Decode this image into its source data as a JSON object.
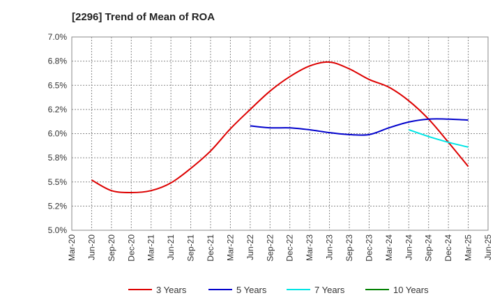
{
  "chart_data": {
    "type": "line",
    "title": "[2296]  Trend of Mean of ROA",
    "xlabel": "",
    "ylabel": "",
    "x_ticks": [
      "Mar-20",
      "Jun-20",
      "Sep-20",
      "Dec-20",
      "Mar-21",
      "Jun-21",
      "Sep-21",
      "Dec-21",
      "Mar-22",
      "Jun-22",
      "Sep-22",
      "Dec-22",
      "Mar-23",
      "Jun-23",
      "Sep-23",
      "Dec-23",
      "Mar-24",
      "Jun-24",
      "Sep-24",
      "Dec-24",
      "Mar-25",
      "Jun-25"
    ],
    "y_ticks": [
      "5.0%",
      "5.2%",
      "5.5%",
      "5.8%",
      "6.0%",
      "6.2%",
      "6.5%",
      "6.8%",
      "7.0%"
    ],
    "ylim": [
      5.0,
      7.0
    ],
    "grid": true,
    "legend_position": "bottom",
    "series": [
      {
        "name": "3 Years",
        "color": "#dd0000",
        "x": [
          "Jun-20",
          "Sep-20",
          "Dec-20",
          "Mar-21",
          "Jun-21",
          "Sep-21",
          "Dec-21",
          "Mar-22",
          "Jun-22",
          "Sep-22",
          "Dec-22",
          "Mar-23",
          "Jun-23",
          "Sep-23",
          "Dec-23",
          "Mar-24",
          "Jun-24",
          "Sep-24",
          "Dec-24",
          "Mar-25"
        ],
        "values": [
          5.52,
          5.41,
          5.39,
          5.41,
          5.49,
          5.64,
          5.82,
          6.05,
          6.25,
          6.44,
          6.59,
          6.7,
          6.74,
          6.67,
          6.56,
          6.48,
          6.34,
          6.15,
          5.91,
          5.66
        ]
      },
      {
        "name": "5 Years",
        "color": "#0000cc",
        "x": [
          "Jun-22",
          "Sep-22",
          "Dec-22",
          "Mar-23",
          "Jun-23",
          "Sep-23",
          "Dec-23",
          "Mar-24",
          "Jun-24",
          "Sep-24",
          "Dec-24",
          "Mar-25"
        ],
        "values": [
          6.08,
          6.06,
          6.06,
          6.04,
          6.01,
          5.99,
          5.99,
          6.06,
          6.12,
          6.15,
          6.15,
          6.14
        ]
      },
      {
        "name": "7 Years",
        "color": "#00e5e5",
        "x": [
          "Jun-24",
          "Sep-24",
          "Dec-24",
          "Mar-25"
        ],
        "values": [
          6.04,
          5.97,
          5.91,
          5.86
        ]
      },
      {
        "name": "10 Years",
        "color": "#008000",
        "x": [],
        "values": []
      }
    ]
  }
}
